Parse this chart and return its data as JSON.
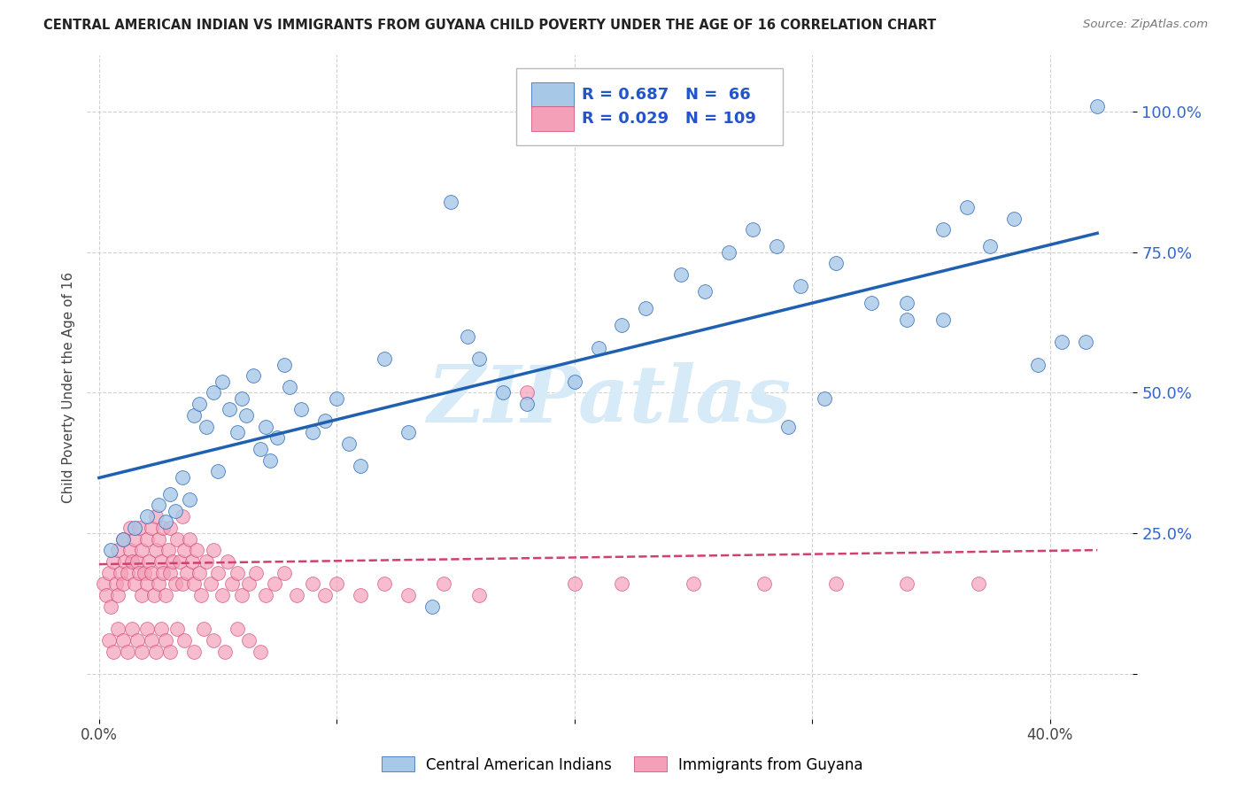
{
  "title": "CENTRAL AMERICAN INDIAN VS IMMIGRANTS FROM GUYANA CHILD POVERTY UNDER THE AGE OF 16 CORRELATION CHART",
  "source": "Source: ZipAtlas.com",
  "ylabel": "Child Poverty Under the Age of 16",
  "yticks": [
    0.0,
    0.25,
    0.5,
    0.75,
    1.0
  ],
  "ytick_labels": [
    "",
    "25.0%",
    "50.0%",
    "75.0%",
    "100.0%"
  ],
  "xticks": [
    0.0,
    0.1,
    0.2,
    0.3,
    0.4
  ],
  "xtick_labels": [
    "0.0%",
    "",
    "",
    "",
    "40.0%"
  ],
  "xlim": [
    -0.005,
    0.435
  ],
  "ylim": [
    -0.08,
    1.1
  ],
  "legend_r1": "R = 0.687",
  "legend_n1": "N =  66",
  "legend_r2": "R = 0.029",
  "legend_n2": "N = 109",
  "legend_label1": "Central American Indians",
  "legend_label2": "Immigrants from Guyana",
  "color_blue": "#a8c8e8",
  "color_pink": "#f4a0b8",
  "line_color_blue": "#2060b0",
  "line_color_pink": "#d04070",
  "watermark": "ZIPatlas",
  "watermark_color": "#d6eaf8",
  "blue_x": [
    0.005,
    0.01,
    0.015,
    0.02,
    0.025,
    0.028,
    0.03,
    0.032,
    0.035,
    0.038,
    0.04,
    0.042,
    0.045,
    0.048,
    0.05,
    0.052,
    0.055,
    0.058,
    0.06,
    0.062,
    0.065,
    0.068,
    0.07,
    0.072,
    0.075,
    0.078,
    0.08,
    0.085,
    0.09,
    0.095,
    0.1,
    0.105,
    0.11,
    0.12,
    0.13,
    0.14,
    0.155,
    0.16,
    0.17,
    0.18,
    0.2,
    0.21,
    0.22,
    0.23,
    0.245,
    0.255,
    0.265,
    0.275,
    0.285,
    0.295,
    0.31,
    0.325,
    0.34,
    0.355,
    0.365,
    0.375,
    0.385,
    0.395,
    0.405,
    0.415,
    0.148,
    0.29,
    0.305,
    0.34,
    0.355,
    0.42
  ],
  "blue_y": [
    0.22,
    0.24,
    0.26,
    0.28,
    0.3,
    0.27,
    0.32,
    0.29,
    0.35,
    0.31,
    0.46,
    0.48,
    0.44,
    0.5,
    0.36,
    0.52,
    0.47,
    0.43,
    0.49,
    0.46,
    0.53,
    0.4,
    0.44,
    0.38,
    0.42,
    0.55,
    0.51,
    0.47,
    0.43,
    0.45,
    0.49,
    0.41,
    0.37,
    0.56,
    0.43,
    0.12,
    0.6,
    0.56,
    0.5,
    0.48,
    0.52,
    0.58,
    0.62,
    0.65,
    0.71,
    0.68,
    0.75,
    0.79,
    0.76,
    0.69,
    0.73,
    0.66,
    0.63,
    0.79,
    0.83,
    0.76,
    0.81,
    0.55,
    0.59,
    0.59,
    0.84,
    0.44,
    0.49,
    0.66,
    0.63,
    1.01
  ],
  "pink_x": [
    0.002,
    0.003,
    0.004,
    0.005,
    0.006,
    0.007,
    0.008,
    0.008,
    0.009,
    0.01,
    0.01,
    0.011,
    0.012,
    0.013,
    0.013,
    0.014,
    0.015,
    0.015,
    0.016,
    0.017,
    0.017,
    0.018,
    0.018,
    0.019,
    0.02,
    0.02,
    0.021,
    0.022,
    0.022,
    0.023,
    0.024,
    0.024,
    0.025,
    0.025,
    0.026,
    0.027,
    0.027,
    0.028,
    0.029,
    0.03,
    0.03,
    0.031,
    0.032,
    0.033,
    0.034,
    0.035,
    0.035,
    0.036,
    0.037,
    0.038,
    0.039,
    0.04,
    0.041,
    0.042,
    0.043,
    0.045,
    0.047,
    0.048,
    0.05,
    0.052,
    0.054,
    0.056,
    0.058,
    0.06,
    0.063,
    0.066,
    0.07,
    0.074,
    0.078,
    0.083,
    0.09,
    0.095,
    0.1,
    0.11,
    0.12,
    0.13,
    0.145,
    0.16,
    0.18,
    0.2,
    0.22,
    0.25,
    0.28,
    0.31,
    0.34,
    0.37,
    0.004,
    0.006,
    0.008,
    0.01,
    0.012,
    0.014,
    0.016,
    0.018,
    0.02,
    0.022,
    0.024,
    0.026,
    0.028,
    0.03,
    0.033,
    0.036,
    0.04,
    0.044,
    0.048,
    0.053,
    0.058,
    0.063,
    0.068
  ],
  "pink_y": [
    0.16,
    0.14,
    0.18,
    0.12,
    0.2,
    0.16,
    0.14,
    0.22,
    0.18,
    0.16,
    0.24,
    0.2,
    0.18,
    0.22,
    0.26,
    0.2,
    0.16,
    0.24,
    0.2,
    0.18,
    0.26,
    0.14,
    0.22,
    0.18,
    0.16,
    0.24,
    0.2,
    0.18,
    0.26,
    0.14,
    0.22,
    0.28,
    0.16,
    0.24,
    0.2,
    0.18,
    0.26,
    0.14,
    0.22,
    0.18,
    0.26,
    0.2,
    0.16,
    0.24,
    0.2,
    0.16,
    0.28,
    0.22,
    0.18,
    0.24,
    0.2,
    0.16,
    0.22,
    0.18,
    0.14,
    0.2,
    0.16,
    0.22,
    0.18,
    0.14,
    0.2,
    0.16,
    0.18,
    0.14,
    0.16,
    0.18,
    0.14,
    0.16,
    0.18,
    0.14,
    0.16,
    0.14,
    0.16,
    0.14,
    0.16,
    0.14,
    0.16,
    0.14,
    0.5,
    0.16,
    0.16,
    0.16,
    0.16,
    0.16,
    0.16,
    0.16,
    0.06,
    0.04,
    0.08,
    0.06,
    0.04,
    0.08,
    0.06,
    0.04,
    0.08,
    0.06,
    0.04,
    0.08,
    0.06,
    0.04,
    0.08,
    0.06,
    0.04,
    0.08,
    0.06,
    0.04,
    0.08,
    0.06,
    0.04
  ]
}
